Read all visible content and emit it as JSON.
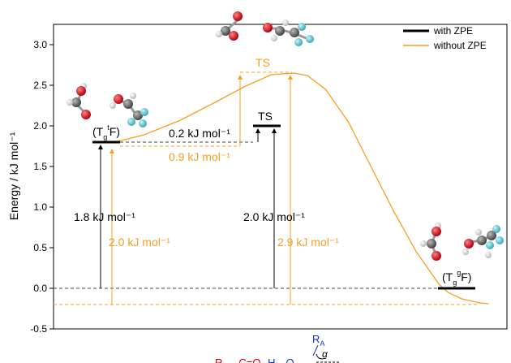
{
  "chart_data": {
    "type": "line",
    "ylabel": "Energy / kJ mol⁻¹",
    "ylim": [
      -0.5,
      3.25
    ],
    "xlim": [
      0,
      10
    ],
    "yticks": [
      -0.5,
      0.0,
      0.5,
      1.0,
      1.5,
      2.0,
      2.5,
      3.0
    ],
    "ytick_labels": [
      "-0.5",
      "0.0",
      "0.5",
      "1.0",
      "1.5",
      "2.0",
      "2.5",
      "3.0"
    ],
    "grid": false,
    "legend_position": "top-right",
    "series": [
      {
        "name": "with ZPE",
        "color": "#000000",
        "levels": [
          {
            "label": "(TgtF)",
            "x": [
              0.6,
              1.35
            ],
            "y": 1.8
          },
          {
            "label": "TS",
            "x": [
              4.95,
              5.65
            ],
            "y": 2.0
          },
          {
            "label": "(TggF)",
            "x": [
              8.7,
              9.45
            ],
            "y": 0.0
          }
        ]
      },
      {
        "name": "without ZPE",
        "color": "#f5a020",
        "curve": {
          "x": [
            1.35,
            2.0,
            2.8,
            3.6,
            4.2,
            4.8,
            5.3,
            5.6,
            6.0,
            6.5,
            7.0,
            7.5,
            8.0,
            8.5,
            8.7,
            9.0,
            9.4,
            9.6
          ],
          "y": [
            1.8,
            1.89,
            2.07,
            2.3,
            2.48,
            2.63,
            2.65,
            2.62,
            2.45,
            2.05,
            1.5,
            0.95,
            0.45,
            0.05,
            -0.05,
            -0.13,
            -0.18,
            -0.19
          ]
        }
      }
    ],
    "labels": {
      "tgtf": "(T₉ᵗF)",
      "ts_black": "TS",
      "ts_orange": "TS",
      "tggf": "(T₉ᵍF)",
      "e1_black": "1.8 kJ mol⁻¹",
      "e1_orange": "2.0 kJ mol⁻¹",
      "e2_black": "2.0 kJ mol⁻¹",
      "e2_orange": "2.9 kJ mol⁻¹",
      "d_black": "0.2 kJ mol⁻¹",
      "d_orange": "0.9 kJ mol⁻¹"
    },
    "bottom_formula": {
      "ra": "R",
      "ra_sub": "A",
      "alpha": "α",
      "text": "Rₒ—C=O––H—O"
    }
  },
  "colors": {
    "black": "#000000",
    "orange": "#f5a020",
    "red": "#cc0000",
    "blue": "#1030d0",
    "oxygen": "#c8161e",
    "carbon": "#6a6a6a",
    "hydrogen": "#f2f2f2",
    "fluorine": "#62cbd8"
  }
}
